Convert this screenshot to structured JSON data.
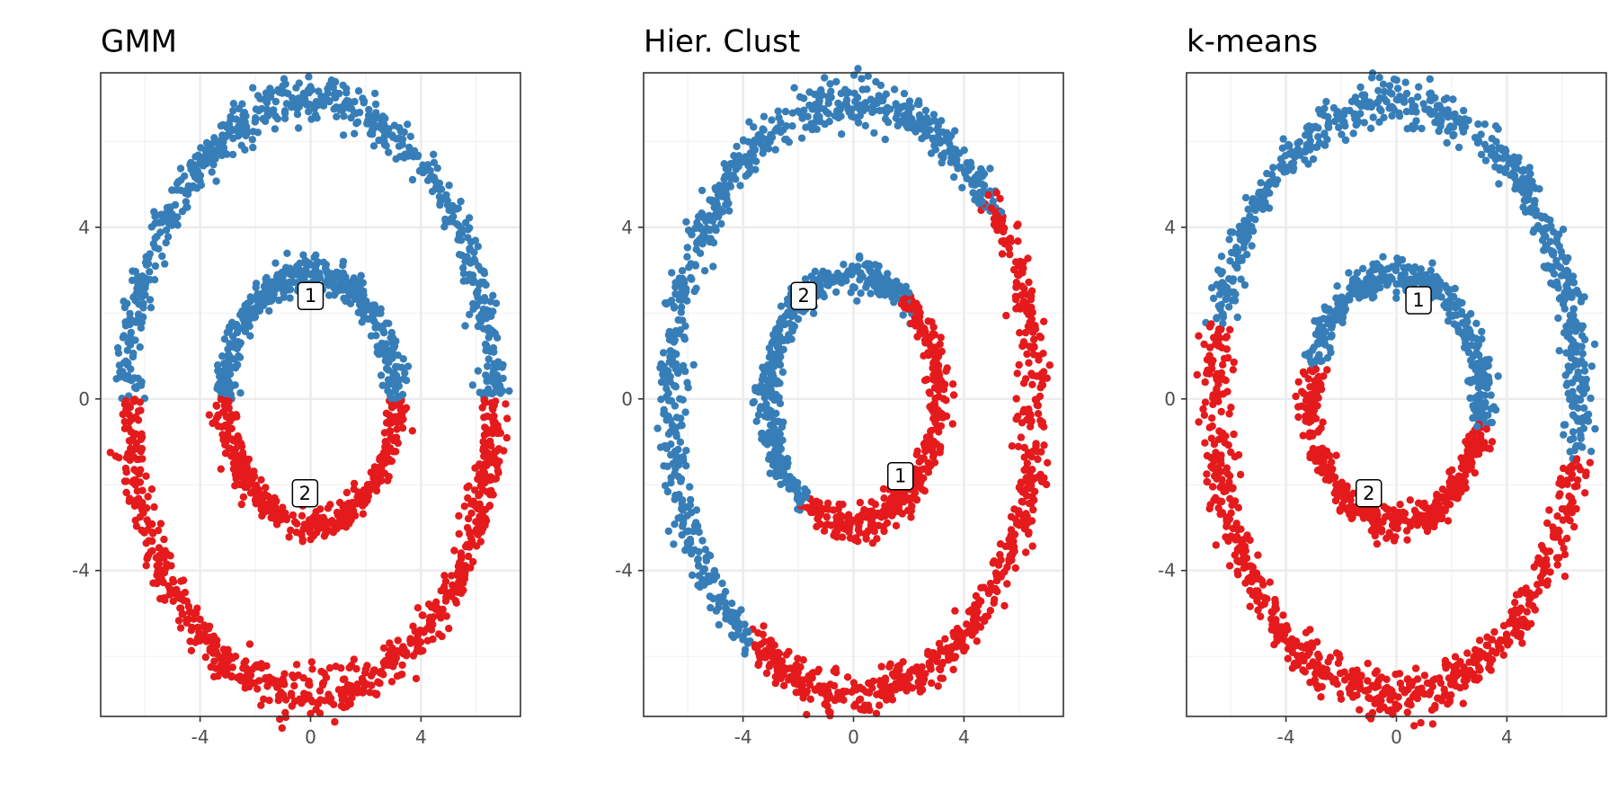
{
  "chart_data": [
    {
      "type": "scatter",
      "title": "GMM",
      "xlabel": "",
      "ylabel": "",
      "xlim": [
        -7.6,
        7.6
      ],
      "ylim": [
        -7.4,
        7.6
      ],
      "x_ticks": [
        -4,
        0,
        4
      ],
      "y_ticks": [
        -4,
        0,
        4
      ],
      "grid": true,
      "legend": "none",
      "rings": [
        {
          "rx": 6.6,
          "ry": 6.9,
          "center": [
            0,
            0
          ]
        },
        {
          "rx": 3.1,
          "ry": 2.9,
          "center": [
            0,
            0
          ]
        }
      ],
      "series": [
        {
          "cluster": "1",
          "color": "#377eb8",
          "arc_deg_ranges": [
            [
              0,
              180
            ]
          ]
        },
        {
          "cluster": "2",
          "color": "#e41a1c",
          "arc_deg_ranges": [
            [
              180,
              360
            ]
          ]
        }
      ],
      "labels": [
        {
          "text": "1",
          "x": 0,
          "y": 2.4
        },
        {
          "text": "2",
          "x": -0.2,
          "y": -2.2
        }
      ]
    },
    {
      "type": "scatter",
      "title": "Hier. Clust",
      "xlabel": "",
      "ylabel": "",
      "xlim": [
        -7.6,
        7.6
      ],
      "ylim": [
        -7.4,
        7.6
      ],
      "x_ticks": [
        -4,
        0,
        4
      ],
      "y_ticks": [
        -4,
        0,
        4
      ],
      "grid": true,
      "legend": "none",
      "rings": [
        {
          "rx": 6.6,
          "ry": 6.9,
          "center": [
            0,
            0
          ]
        },
        {
          "rx": 3.1,
          "ry": 2.9,
          "center": [
            0,
            0
          ]
        }
      ],
      "series": [
        {
          "cluster": "1",
          "color": "#e41a1c",
          "arc_deg_ranges": [
            [
              -125,
              42
            ],
            [
              -125,
              52
            ]
          ]
        },
        {
          "cluster": "2",
          "color": "#377eb8",
          "arc_deg_ranges": [
            [
              42,
              235
            ],
            [
              52,
              195
            ]
          ]
        }
      ],
      "labels": [
        {
          "text": "2",
          "x": -1.8,
          "y": 2.4
        },
        {
          "text": "1",
          "x": 1.7,
          "y": -1.8
        }
      ]
    },
    {
      "type": "scatter",
      "title": "k-means",
      "xlabel": "",
      "ylabel": "",
      "xlim": [
        -7.6,
        7.6
      ],
      "ylim": [
        -7.4,
        7.6
      ],
      "x_ticks": [
        -4,
        0,
        4
      ],
      "y_ticks": [
        -4,
        0,
        4
      ],
      "grid": true,
      "legend": "none",
      "rings": [
        {
          "rx": 6.6,
          "ry": 6.9,
          "center": [
            0,
            0
          ]
        },
        {
          "rx": 3.1,
          "ry": 2.9,
          "center": [
            0,
            0
          ]
        }
      ],
      "series": [
        {
          "cluster": "1",
          "color": "#377eb8",
          "arc_deg_ranges": [
            [
              -12,
              165
            ],
            [
              -12,
              165
            ]
          ]
        },
        {
          "cluster": "2",
          "color": "#e41a1c",
          "arc_deg_ranges": [
            [
              165,
              348
            ],
            [
              165,
              348
            ]
          ]
        }
      ],
      "labels": [
        {
          "text": "1",
          "x": 0.8,
          "y": 2.3
        },
        {
          "text": "2",
          "x": -1.0,
          "y": -2.2
        }
      ]
    }
  ]
}
